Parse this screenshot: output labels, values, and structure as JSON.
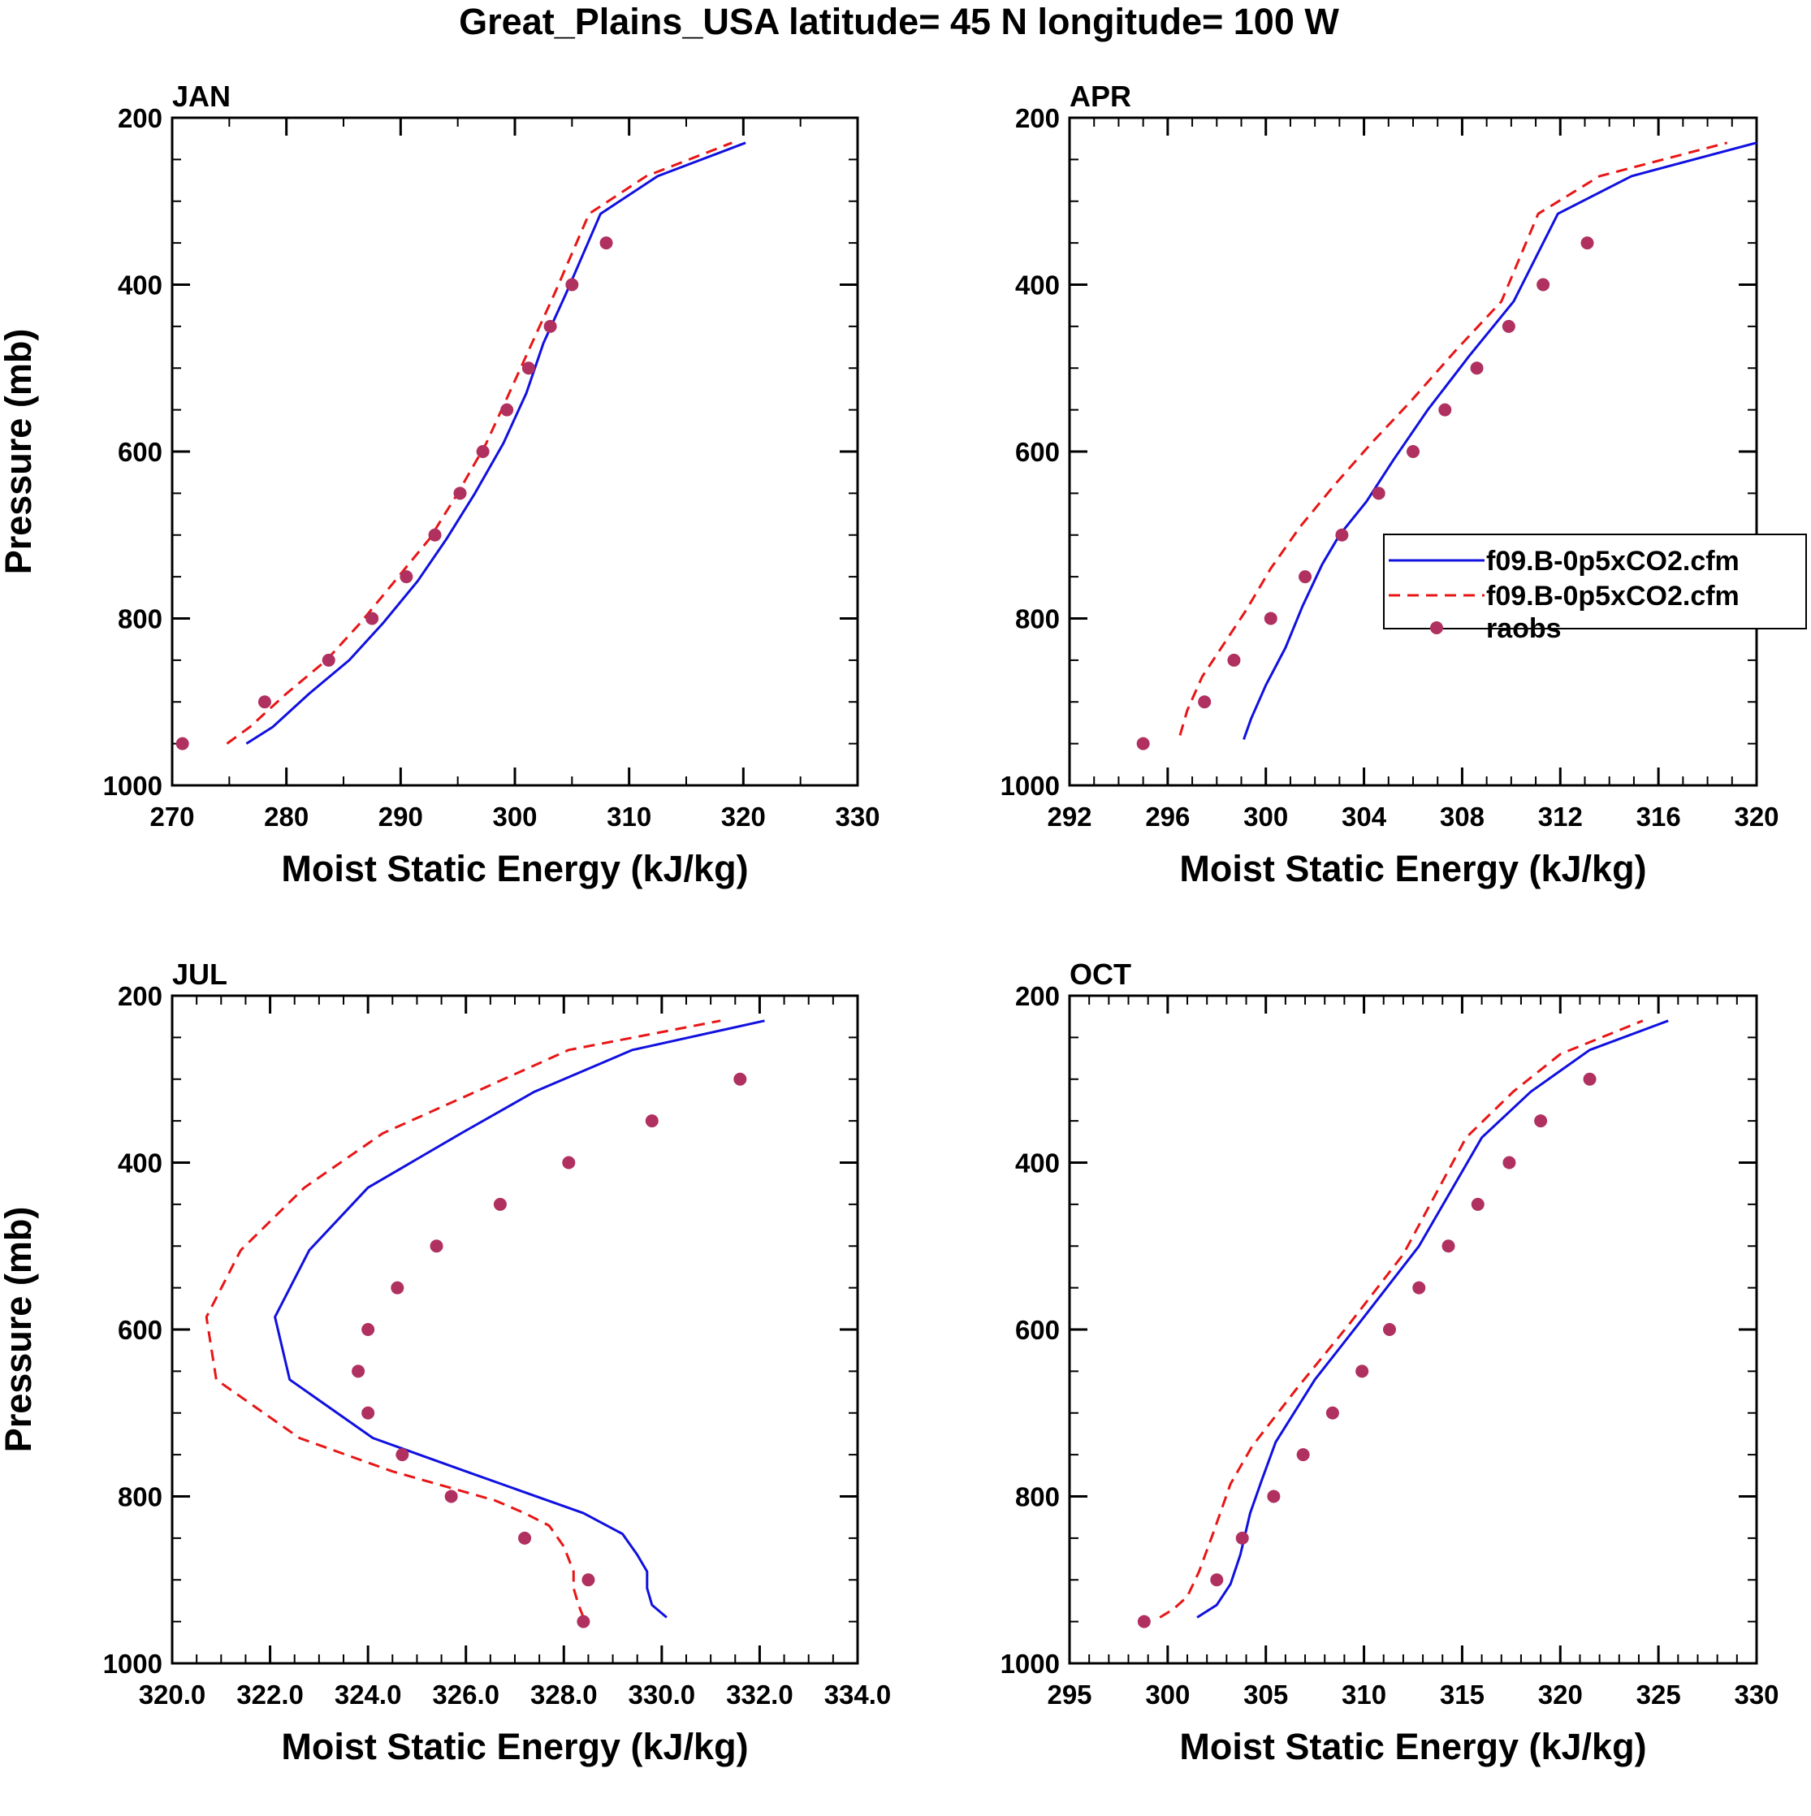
{
  "figure_title": "Great_Plains_USA  latitude= 45 N longitude= 100 W",
  "colors": {
    "model_solid": "#1010e0",
    "model_dashed": "#e81515",
    "obs": "#b03060",
    "axis": "#000000"
  },
  "legend": {
    "entries": [
      {
        "label": "f09.B-0p5xCO2.cfm",
        "style": "solid",
        "color": "#1010e0"
      },
      {
        "label": "f09.B-0p5xCO2.cfm",
        "style": "dashed",
        "color": "#e81515"
      },
      {
        "label": "raobs",
        "style": "marker",
        "color": "#b03060"
      }
    ]
  },
  "chart_data": [
    {
      "type": "line",
      "title": "JAN",
      "xlabel": "Moist Static Energy (kJ/kg)",
      "ylabel": "Pressure (mb)",
      "xlim": [
        270,
        330
      ],
      "ylim": [
        1000,
        200
      ],
      "xticks": [
        270,
        280,
        290,
        300,
        310,
        320,
        330
      ],
      "xticklabels": [
        "270",
        "280",
        "290",
        "300",
        "310",
        "320",
        "330"
      ],
      "xminor": 2,
      "yticks": [
        200,
        400,
        600,
        800,
        1000
      ],
      "yticklabels": [
        "200",
        "400",
        "600",
        "800",
        "1000"
      ],
      "series": [
        {
          "name": "f09.B-0p5xCO2.cfm",
          "style": "solid",
          "color": "#1010e0",
          "x": [
            276.5,
            278.8,
            282,
            285.5,
            288.5,
            291.5,
            294,
            296.5,
            299,
            301,
            302.5,
            304.5,
            307.5,
            312.5,
            320.2
          ],
          "y": [
            950,
            930,
            890,
            850,
            805,
            755,
            705,
            650,
            590,
            530,
            470,
            410,
            315,
            270,
            230
          ]
        },
        {
          "name": "f09.B-0p5xCO2.cfm",
          "style": "dashed",
          "color": "#e81515",
          "x": [
            274.8,
            276.8,
            280,
            283.5,
            286.5,
            289.5,
            292.5,
            295,
            297.5,
            299.5,
            301.5,
            303.5,
            306.5,
            311.5,
            319
          ],
          "y": [
            950,
            930,
            890,
            850,
            805,
            755,
            705,
            650,
            590,
            530,
            470,
            410,
            315,
            270,
            230
          ]
        },
        {
          "name": "raobs",
          "style": "marker",
          "color": "#b03060",
          "x": [
            270.9,
            278.1,
            283.7,
            287.5,
            290.5,
            293,
            295.2,
            297.2,
            299.3,
            301.2,
            303.1,
            305,
            308
          ],
          "y": [
            950,
            900,
            850,
            800,
            750,
            700,
            650,
            600,
            550,
            500,
            450,
            400,
            350
          ]
        }
      ]
    },
    {
      "type": "line",
      "title": "APR",
      "xlabel": "Moist Static Energy (kJ/kg)",
      "ylabel": "",
      "xlim": [
        292,
        320
      ],
      "ylim": [
        1000,
        200
      ],
      "xticks": [
        292,
        296,
        300,
        304,
        308,
        312,
        316,
        320
      ],
      "xticklabels": [
        "292",
        "296",
        "300",
        "304",
        "308",
        "312",
        "316",
        "320"
      ],
      "xminor": 4,
      "yticks": [
        200,
        400,
        600,
        800,
        1000
      ],
      "yticklabels": [
        "200",
        "400",
        "600",
        "800",
        "1000"
      ],
      "series": [
        {
          "name": "f09.B-0p5xCO2.cfm",
          "style": "solid",
          "color": "#1010e0",
          "x": [
            299.1,
            299.4,
            300,
            300.8,
            301.5,
            302.3,
            303,
            304.1,
            305.2,
            306.6,
            308.3,
            310.1,
            311.9,
            314.9,
            320
          ],
          "y": [
            945,
            920,
            880,
            835,
            785,
            735,
            700,
            660,
            610,
            550,
            485,
            420,
            315,
            270,
            230
          ]
        },
        {
          "name": "f09.B-0p5xCO2.cfm",
          "style": "dashed",
          "color": "#e81515",
          "x": [
            296.5,
            296.8,
            297.4,
            298.3,
            299.2,
            300.2,
            301.4,
            302.8,
            304.3,
            305.9,
            307.7,
            309.6,
            311.1,
            313.6,
            318.8
          ],
          "y": [
            940,
            910,
            870,
            830,
            790,
            740,
            690,
            640,
            590,
            540,
            480,
            420,
            315,
            270,
            230
          ]
        },
        {
          "name": "raobs",
          "style": "marker",
          "color": "#b03060",
          "x": [
            295,
            297.5,
            298.7,
            300.2,
            301.6,
            303.1,
            304.6,
            306,
            307.3,
            308.6,
            309.9,
            311.3,
            313.1
          ],
          "y": [
            950,
            900,
            850,
            800,
            750,
            700,
            650,
            600,
            550,
            500,
            450,
            400,
            350
          ]
        }
      ]
    },
    {
      "type": "line",
      "title": "JUL",
      "xlabel": "Moist Static Energy (kJ/kg)",
      "ylabel": "Pressure (mb)",
      "xlim": [
        320,
        334
      ],
      "ylim": [
        1000,
        200
      ],
      "xticks": [
        320,
        322,
        324,
        326,
        328,
        330,
        332,
        334
      ],
      "xticklabels": [
        "320.0",
        "322.0",
        "324.0",
        "326.0",
        "328.0",
        "330.0",
        "332.0",
        "334.0"
      ],
      "xminor": 4,
      "yticks": [
        200,
        400,
        600,
        800,
        1000
      ],
      "yticklabels": [
        "200",
        "400",
        "600",
        "800",
        "1000"
      ],
      "series": [
        {
          "name": "f09.B-0p5xCO2.cfm",
          "style": "solid",
          "color": "#1010e0",
          "x": [
            330.1,
            329.8,
            329.7,
            329.7,
            329.5,
            329.2,
            328.4,
            326,
            324.1,
            322.4,
            322.1,
            322.8,
            324,
            325.9,
            327.4,
            329.4,
            332.1
          ],
          "y": [
            945,
            930,
            910,
            890,
            870,
            845,
            820,
            770,
            730,
            660,
            585,
            505,
            430,
            365,
            315,
            265,
            230
          ]
        },
        {
          "name": "f09.B-0p5xCO2.cfm",
          "style": "dashed",
          "color": "#e81515",
          "x": [
            328.4,
            328.3,
            328.2,
            328.2,
            328,
            327.7,
            327.2,
            326.6,
            324.5,
            322.6,
            320.9,
            320.7,
            321.4,
            322.7,
            324.3,
            326.2,
            328.1,
            331.2
          ],
          "y": [
            945,
            930,
            910,
            890,
            860,
            835,
            820,
            805,
            770,
            730,
            660,
            585,
            505,
            430,
            365,
            315,
            265,
            230
          ]
        },
        {
          "name": "raobs",
          "style": "marker",
          "color": "#b03060",
          "x": [
            328.4,
            328.5,
            327.2,
            325.7,
            324.7,
            324,
            323.8,
            324,
            324.6,
            325.4,
            326.7,
            328.1,
            329.8,
            331.6
          ],
          "y": [
            950,
            900,
            850,
            800,
            750,
            700,
            650,
            600,
            550,
            500,
            450,
            400,
            350,
            300
          ]
        }
      ]
    },
    {
      "type": "line",
      "title": "OCT",
      "xlabel": "Moist Static Energy (kJ/kg)",
      "ylabel": "",
      "xlim": [
        295,
        330
      ],
      "ylim": [
        1000,
        200
      ],
      "xticks": [
        295,
        300,
        305,
        310,
        315,
        320,
        325,
        330
      ],
      "xticklabels": [
        "295",
        "300",
        "305",
        "310",
        "315",
        "320",
        "325",
        "330"
      ],
      "xminor": 5,
      "yticks": [
        200,
        400,
        600,
        800,
        1000
      ],
      "yticklabels": [
        "200",
        "400",
        "600",
        "800",
        "1000"
      ],
      "series": [
        {
          "name": "f09.B-0p5xCO2.cfm",
          "style": "solid",
          "color": "#1010e0",
          "x": [
            301.5,
            302.5,
            303.2,
            303.7,
            304.2,
            304.8,
            305.5,
            307.5,
            310,
            312.8,
            316,
            318.5,
            321.5,
            325.5
          ],
          "y": [
            945,
            930,
            905,
            870,
            820,
            780,
            735,
            660,
            585,
            500,
            370,
            315,
            265,
            230
          ]
        },
        {
          "name": "f09.B-0p5xCO2.cfm",
          "style": "dashed",
          "color": "#e81515",
          "x": [
            299.6,
            300.3,
            301,
            301.6,
            302.3,
            303.2,
            304.3,
            306.6,
            309.2,
            312,
            315.2,
            317.6,
            320,
            324.2
          ],
          "y": [
            945,
            935,
            920,
            890,
            845,
            785,
            740,
            670,
            595,
            510,
            370,
            315,
            270,
            230
          ]
        },
        {
          "name": "raobs",
          "style": "marker",
          "color": "#b03060",
          "x": [
            298.8,
            302.5,
            303.8,
            305.4,
            306.9,
            308.4,
            309.9,
            311.3,
            312.8,
            314.3,
            315.8,
            317.4,
            319,
            321.5
          ],
          "y": [
            950,
            900,
            850,
            800,
            750,
            700,
            650,
            600,
            550,
            500,
            450,
            400,
            350,
            300
          ]
        }
      ]
    }
  ]
}
